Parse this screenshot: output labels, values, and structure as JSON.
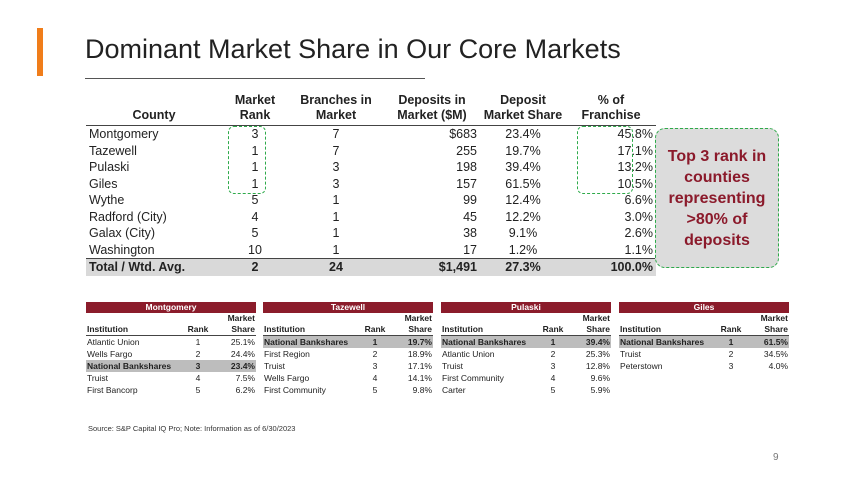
{
  "title": "Dominant Market Share in Our Core Markets",
  "main_table": {
    "headers": [
      [
        "",
        "County"
      ],
      [
        "Market",
        "Rank"
      ],
      [
        "Branches in",
        "Market"
      ],
      [
        "Deposits in",
        "Market ($M)"
      ],
      [
        "Deposit",
        "Market Share"
      ],
      [
        "% of",
        "Franchise"
      ]
    ],
    "rows": [
      [
        "Montgomery",
        "3",
        "7",
        "$683",
        "23.4%",
        "45.8%"
      ],
      [
        "Tazewell",
        "1",
        "7",
        "255",
        "19.7%",
        "17.1%"
      ],
      [
        "Pulaski",
        "1",
        "3",
        "198",
        "39.4%",
        "13.2%"
      ],
      [
        "Giles",
        "1",
        "3",
        "157",
        "61.5%",
        "10.5%"
      ],
      [
        "Wythe",
        "5",
        "1",
        "99",
        "12.4%",
        "6.6%"
      ],
      [
        "Radford (City)",
        "4",
        "1",
        "45",
        "12.2%",
        "3.0%"
      ],
      [
        "Galax (City)",
        "5",
        "1",
        "38",
        "9.1%",
        "2.6%"
      ],
      [
        "Washington",
        "10",
        "1",
        "17",
        "1.2%",
        "1.1%"
      ]
    ],
    "total": [
      "Total / Wtd. Avg.",
      "2",
      "24",
      "$1,491",
      "27.3%",
      "100.0%"
    ]
  },
  "callout": "Top 3 rank in counties representing >80% of deposits",
  "colors": {
    "accent": "#f07d1a",
    "brand": "#8b1c2b",
    "highlight_dash": "#2eaa4a"
  },
  "market_tables": [
    {
      "market": "Montgomery",
      "headers": [
        "Institution",
        "Rank",
        "Market",
        "Share"
      ],
      "rows": [
        [
          "Atlantic Union",
          "1",
          "25.1%"
        ],
        [
          "Wells Fargo",
          "2",
          "24.4%"
        ],
        [
          "National Bankshares",
          "3",
          "23.4%"
        ],
        [
          "Truist",
          "4",
          "7.5%"
        ],
        [
          "First Bancorp",
          "5",
          "6.2%"
        ]
      ],
      "highlight": 2
    },
    {
      "market": "Tazewell",
      "headers": [
        "Institution",
        "Rank",
        "Market",
        "Share"
      ],
      "rows": [
        [
          "National Bankshares",
          "1",
          "19.7%"
        ],
        [
          "First Region",
          "2",
          "18.9%"
        ],
        [
          "Truist",
          "3",
          "17.1%"
        ],
        [
          "Wells Fargo",
          "4",
          "14.1%"
        ],
        [
          "First Community",
          "5",
          "9.8%"
        ]
      ],
      "highlight": 0
    },
    {
      "market": "Pulaski",
      "headers": [
        "Institution",
        "Rank",
        "Market",
        "Share"
      ],
      "rows": [
        [
          "National Bankshares",
          "1",
          "39.4%"
        ],
        [
          "Atlantic Union",
          "2",
          "25.3%"
        ],
        [
          "Truist",
          "3",
          "12.8%"
        ],
        [
          "First Community",
          "4",
          "9.6%"
        ],
        [
          "Carter",
          "5",
          "5.9%"
        ]
      ],
      "highlight": 0
    },
    {
      "market": "Giles",
      "headers": [
        "Institution",
        "Rank",
        "Market",
        "Share"
      ],
      "rows": [
        [
          "National Bankshares",
          "1",
          "61.5%"
        ],
        [
          "Truist",
          "2",
          "34.5%"
        ],
        [
          "Peterstown",
          "3",
          "4.0%"
        ]
      ],
      "highlight": 0
    }
  ],
  "source": "Source: S&P Capital IQ Pro; Note: Information as of 6/30/2023",
  "page_number": "9"
}
